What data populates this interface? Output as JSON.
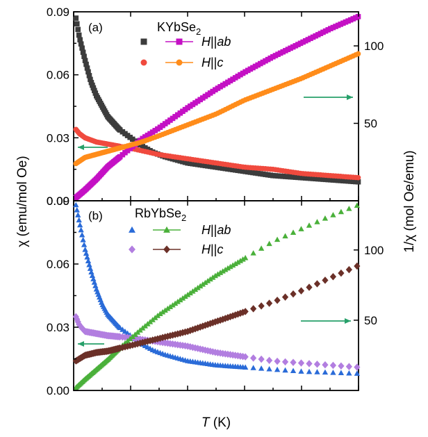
{
  "chart_data": [
    {
      "panel": "(a)",
      "compound": "KYbSe",
      "compound_sub": "2",
      "type": "scatter",
      "x_axis": {
        "label_italic": "T",
        "label_rest": " (K)",
        "range": [
          0,
          250
        ],
        "ticks": [
          "0",
          "50",
          "100",
          "150",
          "200",
          "250"
        ]
      },
      "y_left": {
        "label": "χ (emu/mol Oe)",
        "range": [
          0,
          0.09
        ],
        "ticks": [
          "0.00",
          "0.03",
          "0.06",
          "0.09"
        ]
      },
      "y_right": {
        "label": "1/χ (mol Oe/emu)",
        "range": [
          0,
          122
        ],
        "ticks": [
          "50",
          "100"
        ]
      },
      "series": [
        {
          "name": "H||ab",
          "name_italic": "H",
          "name_mid": "||",
          "name_italic2": "ab",
          "axis": "left",
          "color": "#3c3c3c",
          "marker": "square",
          "x": [
            2,
            5,
            10,
            15,
            20,
            25,
            30,
            40,
            50,
            60,
            70,
            80,
            100,
            125,
            150,
            175,
            200,
            225,
            250
          ],
          "y": [
            0.087,
            0.078,
            0.067,
            0.057,
            0.05,
            0.045,
            0.04,
            0.034,
            0.03,
            0.026,
            0.023,
            0.021,
            0.018,
            0.016,
            0.014,
            0.012,
            0.011,
            0.01,
            0.009
          ]
        },
        {
          "name": "H||c",
          "name_italic": "H",
          "name_mid": "||",
          "name_italic2": "c",
          "axis": "left",
          "color": "#f04a3e",
          "marker": "circle",
          "x": [
            2,
            5,
            10,
            20,
            30,
            50,
            75,
            100,
            125,
            150,
            175,
            200,
            225,
            250
          ],
          "y": [
            0.034,
            0.032,
            0.03,
            0.028,
            0.027,
            0.025,
            0.022,
            0.02,
            0.018,
            0.016,
            0.015,
            0.013,
            0.012,
            0.011
          ]
        },
        {
          "name": "H||ab (1/χ)",
          "axis": "right",
          "color": "#c410c4",
          "marker": "square-line",
          "x": [
            2,
            10,
            20,
            30,
            40,
            50,
            60,
            75,
            100,
            125,
            150,
            175,
            200,
            225,
            250
          ],
          "y": [
            2,
            7,
            14,
            22,
            28,
            34,
            40,
            47,
            60,
            72,
            83,
            93,
            102,
            111,
            119
          ]
        },
        {
          "name": "H||c (1/χ)",
          "axis": "right",
          "color": "#ff8c1a",
          "marker": "circle-line",
          "x": [
            2,
            10,
            20,
            30,
            40,
            50,
            60,
            75,
            100,
            125,
            150,
            175,
            200,
            225,
            250
          ],
          "y": [
            24,
            28,
            30,
            32,
            34,
            36,
            38,
            42,
            49,
            56,
            65,
            72,
            79,
            87,
            95
          ]
        }
      ]
    },
    {
      "panel": "(b)",
      "compound": "RbYbSe",
      "compound_sub": "2",
      "type": "scatter",
      "x_axis": {
        "label_italic": "T",
        "label_rest": " (K)",
        "range": [
          0,
          250
        ],
        "ticks": [
          "0",
          "50",
          "100",
          "150",
          "200",
          "250"
        ]
      },
      "y_left": {
        "label": "χ (emu/mol Oe)",
        "range": [
          0,
          0.09
        ],
        "ticks": [
          "0.00",
          "0.03",
          "0.06",
          "0.09"
        ]
      },
      "y_right": {
        "label": "1/χ (mol Oe/emu)",
        "range": [
          0,
          135
        ],
        "ticks": [
          "50",
          "100"
        ]
      },
      "series": [
        {
          "name": "H||ab",
          "name_italic": "H",
          "name_mid": "||",
          "name_italic2": "ab",
          "axis": "left",
          "color": "#2a6bd8",
          "marker": "triangle",
          "x": [
            2,
            5,
            10,
            15,
            20,
            25,
            30,
            40,
            50,
            60,
            70,
            80,
            100,
            125,
            150,
            175,
            200,
            225,
            250
          ],
          "y": [
            0.088,
            0.08,
            0.067,
            0.057,
            0.048,
            0.041,
            0.036,
            0.03,
            0.026,
            0.022,
            0.019,
            0.017,
            0.014,
            0.012,
            0.011,
            0.01,
            0.009,
            0.0085,
            0.008
          ]
        },
        {
          "name": "H||c",
          "name_italic": "H",
          "name_mid": "||",
          "name_italic2": "c",
          "axis": "left",
          "color": "#b27ee0",
          "marker": "diamond",
          "x": [
            2,
            5,
            10,
            20,
            30,
            50,
            75,
            100,
            125,
            150,
            175,
            200,
            225,
            250
          ],
          "y": [
            0.035,
            0.031,
            0.028,
            0.027,
            0.026,
            0.025,
            0.023,
            0.021,
            0.018,
            0.016,
            0.014,
            0.013,
            0.012,
            0.011
          ]
        },
        {
          "name": "H||ab (1/χ)",
          "axis": "right",
          "color": "#4ab03a",
          "marker": "triangle-line",
          "x": [
            2,
            10,
            20,
            30,
            40,
            50,
            60,
            75,
            100,
            125,
            150,
            175,
            200,
            225,
            250
          ],
          "y": [
            2,
            8,
            15,
            22,
            30,
            37,
            44,
            54,
            68,
            82,
            94,
            106,
            115,
            124,
            132
          ]
        },
        {
          "name": "H||c (1/χ)",
          "axis": "right",
          "color": "#6b3028",
          "marker": "diamond-line",
          "x": [
            2,
            10,
            20,
            30,
            40,
            50,
            60,
            75,
            100,
            125,
            150,
            175,
            200,
            225,
            250
          ],
          "y": [
            21,
            25,
            27,
            28,
            30,
            32,
            34,
            37,
            42,
            49,
            56,
            63,
            71,
            80,
            89
          ]
        }
      ]
    }
  ],
  "arrow_color": "#27a06a"
}
